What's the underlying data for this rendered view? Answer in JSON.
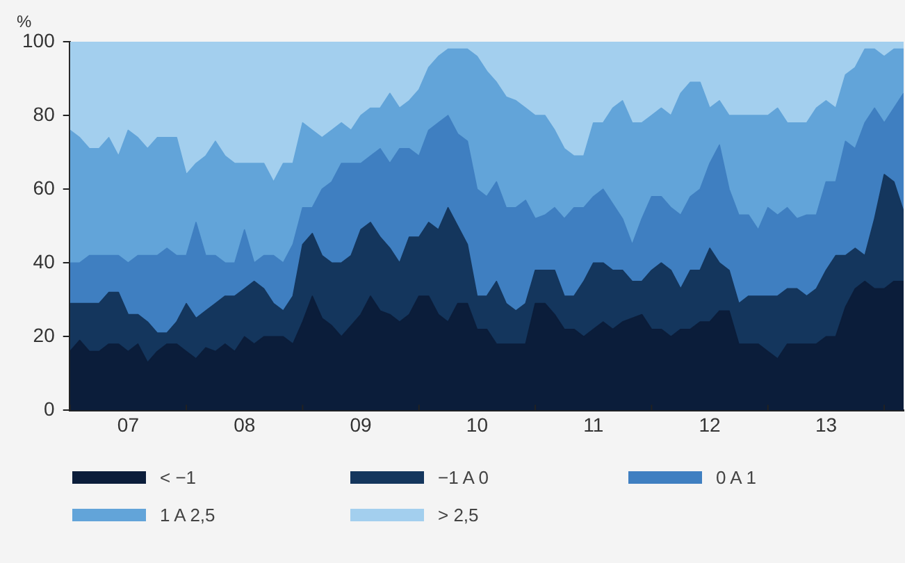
{
  "chart_data": {
    "type": "area",
    "stacked": true,
    "ylabel": "%",
    "x": [
      "2007-01",
      "2007-02",
      "2007-03",
      "2007-04",
      "2007-05",
      "2007-06",
      "2007-07",
      "2007-08",
      "2007-09",
      "2007-10",
      "2007-11",
      "2007-12",
      "2008-01",
      "2008-02",
      "2008-03",
      "2008-04",
      "2008-05",
      "2008-06",
      "2008-07",
      "2008-08",
      "2008-09",
      "2008-10",
      "2008-11",
      "2008-12",
      "2009-01",
      "2009-02",
      "2009-03",
      "2009-04",
      "2009-05",
      "2009-06",
      "2009-07",
      "2009-08",
      "2009-09",
      "2009-10",
      "2009-11",
      "2009-12",
      "2010-01",
      "2010-02",
      "2010-03",
      "2010-04",
      "2010-05",
      "2010-06",
      "2010-07",
      "2010-08",
      "2010-09",
      "2010-10",
      "2010-11",
      "2010-12",
      "2011-01",
      "2011-02",
      "2011-03",
      "2011-04",
      "2011-05",
      "2011-06",
      "2011-07",
      "2011-08",
      "2011-09",
      "2011-10",
      "2011-11",
      "2011-12",
      "2012-01",
      "2012-02",
      "2012-03",
      "2012-04",
      "2012-05",
      "2012-06",
      "2012-07",
      "2012-08",
      "2012-09",
      "2012-10",
      "2012-11",
      "2012-12",
      "2013-01",
      "2013-02",
      "2013-03",
      "2013-04",
      "2013-05",
      "2013-06",
      "2013-07",
      "2013-08",
      "2013-09",
      "2013-10",
      "2013-11",
      "2013-12",
      "2014-01",
      "2014-02",
      "2014-03"
    ],
    "series": [
      {
        "name": "< −1",
        "color": "#0b1d3a",
        "values": [
          16,
          19,
          16,
          16,
          18,
          18,
          16,
          18,
          13,
          16,
          18,
          18,
          16,
          14,
          17,
          16,
          18,
          16,
          20,
          18,
          20,
          20,
          20,
          18,
          24,
          31,
          25,
          23,
          20,
          23,
          26,
          31,
          27,
          26,
          24,
          26,
          31,
          31,
          26,
          24,
          29,
          29,
          22,
          22,
          18,
          18,
          18,
          18,
          29,
          29,
          26,
          22,
          22,
          20,
          22,
          24,
          22,
          24,
          25,
          26,
          22,
          22,
          20,
          22,
          22,
          24,
          24,
          27,
          27,
          18,
          18,
          18,
          16,
          14,
          18,
          18,
          18,
          18,
          20,
          20,
          28,
          33,
          35,
          33,
          33,
          35,
          35
        ]
      },
      {
        "name": "−1 A 0",
        "color": "#14365d",
        "values": [
          13,
          10,
          13,
          13,
          14,
          14,
          10,
          8,
          11,
          5,
          3,
          6,
          13,
          11,
          10,
          13,
          13,
          15,
          13,
          17,
          13,
          9,
          7,
          13,
          21,
          17,
          17,
          17,
          20,
          19,
          23,
          20,
          20,
          18,
          16,
          21,
          16,
          20,
          23,
          31,
          21,
          16,
          9,
          9,
          17,
          11,
          9,
          11,
          9,
          9,
          12,
          9,
          9,
          15,
          18,
          16,
          16,
          14,
          10,
          9,
          16,
          18,
          18,
          11,
          16,
          14,
          20,
          13,
          11,
          11,
          13,
          13,
          15,
          17,
          15,
          15,
          13,
          15,
          18,
          22,
          14,
          11,
          7,
          19,
          31,
          27,
          19
        ]
      },
      {
        "name": "0 A 1",
        "color": "#3f7fc1",
        "values": [
          11,
          11,
          13,
          13,
          10,
          10,
          14,
          16,
          18,
          21,
          23,
          18,
          13,
          26,
          15,
          13,
          9,
          9,
          16,
          5,
          9,
          13,
          13,
          14,
          10,
          7,
          18,
          22,
          27,
          25,
          18,
          18,
          24,
          23,
          31,
          24,
          22,
          25,
          29,
          25,
          25,
          28,
          29,
          27,
          27,
          26,
          28,
          28,
          14,
          15,
          17,
          21,
          24,
          20,
          18,
          20,
          18,
          14,
          10,
          17,
          20,
          18,
          17,
          20,
          20,
          22,
          23,
          32,
          22,
          24,
          22,
          18,
          24,
          22,
          22,
          19,
          22,
          20,
          24,
          20,
          31,
          27,
          36,
          30,
          14,
          20,
          32
        ]
      },
      {
        "name": "1 A 2,5",
        "color": "#62a4d9",
        "values": [
          36,
          34,
          29,
          29,
          32,
          27,
          36,
          32,
          29,
          32,
          30,
          32,
          22,
          16,
          27,
          31,
          29,
          27,
          18,
          27,
          25,
          20,
          27,
          22,
          23,
          21,
          14,
          14,
          11,
          9,
          13,
          13,
          11,
          19,
          11,
          13,
          18,
          17,
          18,
          18,
          23,
          25,
          36,
          34,
          27,
          30,
          29,
          25,
          28,
          27,
          21,
          19,
          14,
          14,
          20,
          18,
          26,
          32,
          33,
          26,
          22,
          24,
          25,
          33,
          31,
          29,
          15,
          12,
          20,
          27,
          27,
          31,
          25,
          29,
          23,
          26,
          25,
          29,
          22,
          20,
          18,
          22,
          20,
          16,
          18,
          16,
          12
        ]
      },
      {
        "name": "> 2,5",
        "color": "#a3cfee",
        "values": [
          24,
          26,
          29,
          29,
          26,
          31,
          24,
          26,
          29,
          26,
          26,
          26,
          36,
          33,
          31,
          27,
          31,
          33,
          33,
          33,
          33,
          38,
          33,
          33,
          22,
          24,
          26,
          24,
          22,
          24,
          20,
          18,
          18,
          14,
          18,
          16,
          13,
          7,
          4,
          2,
          2,
          2,
          4,
          8,
          11,
          15,
          16,
          18,
          20,
          20,
          24,
          29,
          31,
          31,
          22,
          22,
          18,
          16,
          22,
          22,
          20,
          18,
          20,
          14,
          11,
          11,
          18,
          16,
          20,
          20,
          20,
          20,
          20,
          18,
          22,
          22,
          22,
          18,
          16,
          18,
          9,
          7,
          2,
          2,
          4,
          2,
          2
        ]
      }
    ],
    "xlim": [
      "2007-01",
      "2014-03"
    ],
    "xticks": [
      {
        "value": "2007-07",
        "label": "07"
      },
      {
        "value": "2008-07",
        "label": "08"
      },
      {
        "value": "2009-07",
        "label": "09"
      },
      {
        "value": "2010-07",
        "label": "10"
      },
      {
        "value": "2011-07",
        "label": "11"
      },
      {
        "value": "2012-07",
        "label": "12"
      },
      {
        "value": "2013-07",
        "label": "13"
      }
    ],
    "ylim": [
      0,
      100
    ],
    "yticks": [
      0,
      20,
      40,
      60,
      80,
      100
    ],
    "legend": "bottom"
  }
}
